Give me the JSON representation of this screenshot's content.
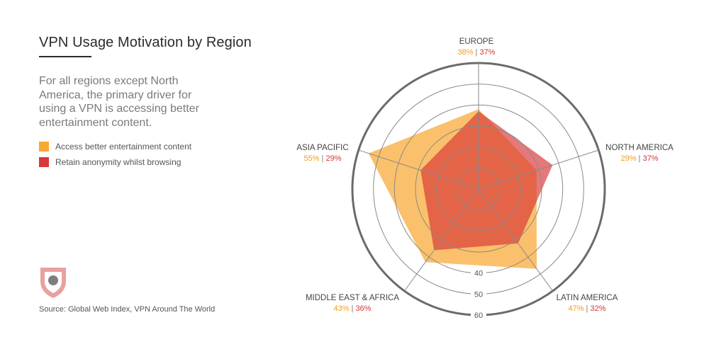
{
  "title": "VPN Usage Motivation by Region",
  "subtitle": "For all regions except North America, the primary driver for using a VPN is accessing better entertainment content.",
  "legend": [
    {
      "label": "Access better entertainment content",
      "color": "#f9a832"
    },
    {
      "label": "Retain anonymity whilst browsing",
      "color": "#d93838"
    }
  ],
  "source": "Source: Global Web Index, VPN Around The World",
  "logo_icon": "shield-icon",
  "chart_data": {
    "type": "radar",
    "title": "VPN Usage Motivation by Region",
    "axes": [
      "EUROPE",
      "NORTH AMERICA",
      "LATIN AMERICA",
      "MIDDLE EAST & AFRICA",
      "ASIA PACIFIC"
    ],
    "series": [
      {
        "name": "Access better entertainment content",
        "values": [
          38,
          29,
          47,
          43,
          55
        ],
        "color": "#f9a832"
      },
      {
        "name": "Retain anonymity whilst browsing",
        "values": [
          37,
          37,
          32,
          36,
          29
        ],
        "color": "#d93838"
      }
    ],
    "value_labels": [
      "38%",
      "37%",
      "29%",
      "37%",
      "47%",
      "32%",
      "43%",
      "36%",
      "55%",
      "29%"
    ],
    "separator": "|",
    "ring_labels": [
      "40",
      "50",
      "60"
    ],
    "range": [
      0,
      60
    ],
    "rings": [
      10,
      20,
      30,
      40,
      50,
      60
    ]
  }
}
